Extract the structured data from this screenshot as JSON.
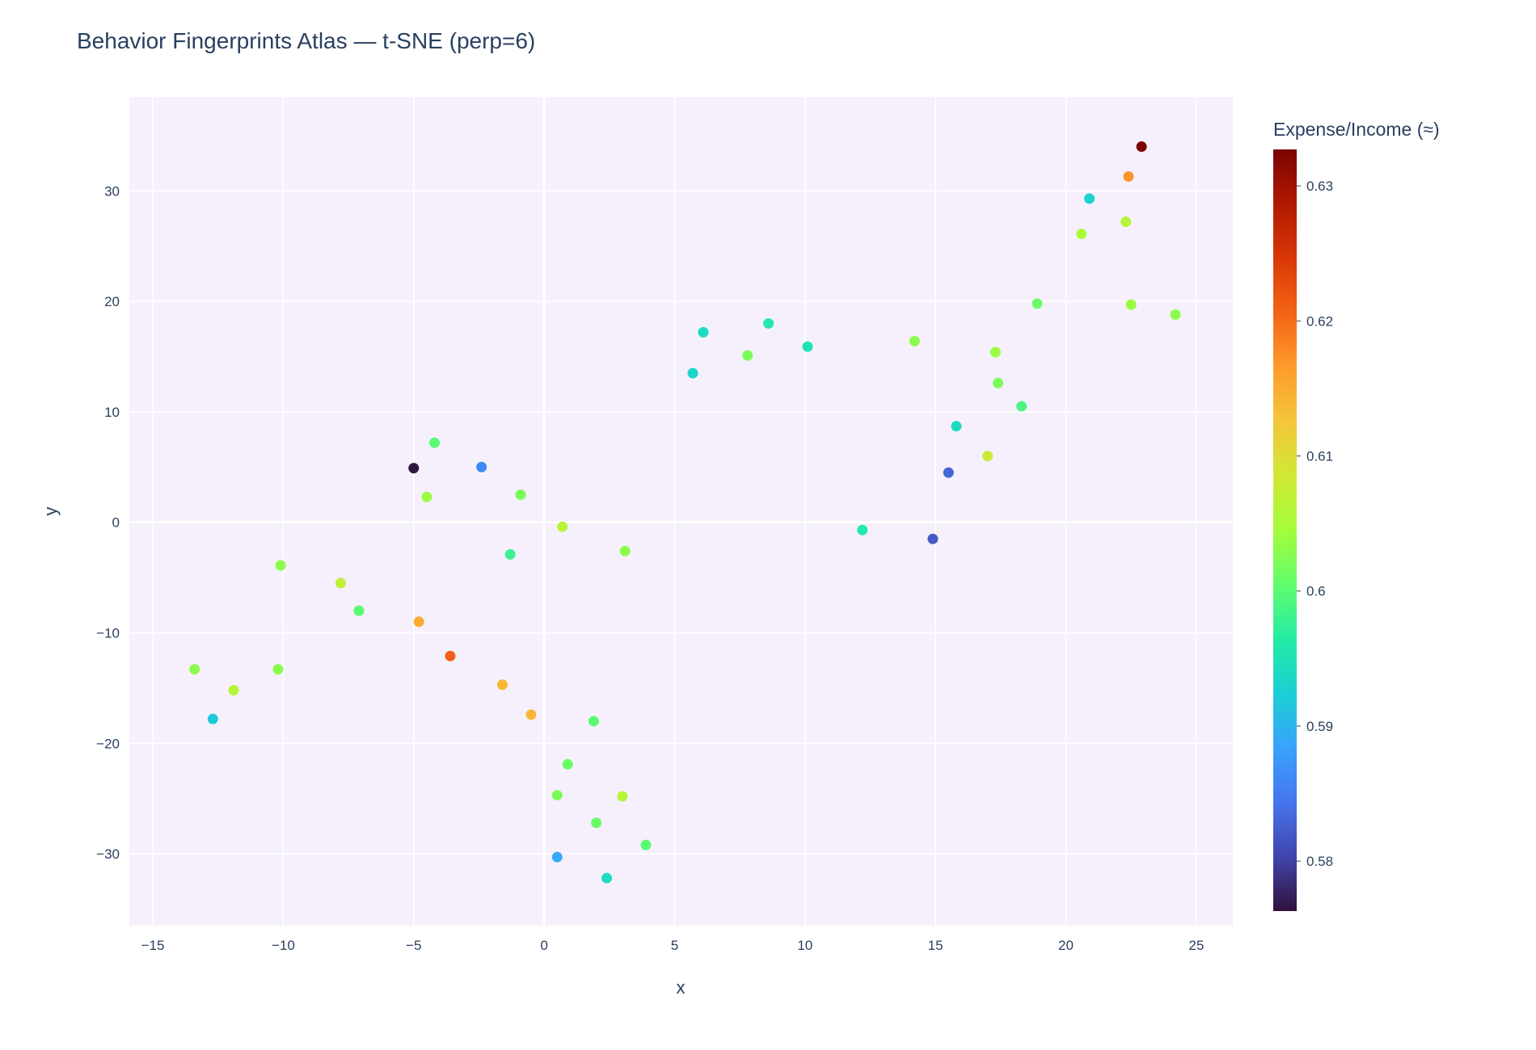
{
  "chart_data": {
    "type": "scatter",
    "title": "Behavior Fingerprints Atlas — t-SNE (perp=6)",
    "xlabel": "x",
    "ylabel": "y",
    "xlim": [
      -15.9,
      26.4
    ],
    "ylim": [
      -36.5,
      38.5
    ],
    "x_ticks": [
      -15,
      -10,
      -5,
      0,
      5,
      10,
      15,
      20,
      25
    ],
    "y_ticks": [
      -30,
      -20,
      -10,
      0,
      10,
      20,
      30
    ],
    "grid": true,
    "colorbar": {
      "title": "Expense/Income (≈)",
      "range": [
        0.5763,
        0.6327
      ],
      "ticks": [
        0.58,
        0.59,
        0.6,
        0.61,
        0.62,
        0.63
      ],
      "tick_labels": [
        "0.58",
        "0.59",
        "0.6",
        "0.61",
        "0.62",
        "0.63"
      ],
      "colorscale": "Turbo",
      "scale_colors": [
        "#30123b",
        "#4145ab",
        "#4675ed",
        "#39a2fc",
        "#1bcfd4",
        "#24eca6",
        "#61fc6c",
        "#a4fc3b",
        "#d1e834",
        "#f3c63a",
        "#fe9b2d",
        "#f36315",
        "#d93806",
        "#b11901",
        "#7a0402"
      ]
    },
    "colors": {
      "plot_background": "#f5f0fc",
      "grid": "#ffffff",
      "text": "#2a3f5f"
    },
    "points": [
      {
        "x": -13.4,
        "y": -13.3,
        "value": 0.603
      },
      {
        "x": -12.7,
        "y": -17.8,
        "value": 0.592
      },
      {
        "x": -11.9,
        "y": -15.2,
        "value": 0.606
      },
      {
        "x": -10.2,
        "y": -13.3,
        "value": 0.603
      },
      {
        "x": -10.1,
        "y": -3.9,
        "value": 0.603
      },
      {
        "x": -7.8,
        "y": -5.5,
        "value": 0.607
      },
      {
        "x": -7.1,
        "y": -8.0,
        "value": 0.6
      },
      {
        "x": -5.0,
        "y": 4.9,
        "value": 0.5765
      },
      {
        "x": -4.8,
        "y": -9.0,
        "value": 0.615
      },
      {
        "x": -4.5,
        "y": 2.3,
        "value": 0.604
      },
      {
        "x": -4.2,
        "y": 7.2,
        "value": 0.6
      },
      {
        "x": -3.6,
        "y": -12.1,
        "value": 0.621
      },
      {
        "x": -2.4,
        "y": 5.0,
        "value": 0.586
      },
      {
        "x": -1.6,
        "y": -14.7,
        "value": 0.614
      },
      {
        "x": -1.3,
        "y": -2.9,
        "value": 0.598
      },
      {
        "x": -0.9,
        "y": 2.5,
        "value": 0.602
      },
      {
        "x": -0.5,
        "y": -17.4,
        "value": 0.614
      },
      {
        "x": 0.5,
        "y": -30.3,
        "value": 0.589
      },
      {
        "x": 0.5,
        "y": -24.7,
        "value": 0.602
      },
      {
        "x": 0.7,
        "y": -0.4,
        "value": 0.606
      },
      {
        "x": 0.9,
        "y": -21.9,
        "value": 0.601
      },
      {
        "x": 1.9,
        "y": -18.0,
        "value": 0.6
      },
      {
        "x": 2.0,
        "y": -27.2,
        "value": 0.601
      },
      {
        "x": 2.4,
        "y": -32.2,
        "value": 0.594
      },
      {
        "x": 3.0,
        "y": -24.8,
        "value": 0.606
      },
      {
        "x": 3.1,
        "y": -2.6,
        "value": 0.603
      },
      {
        "x": 3.9,
        "y": -29.2,
        "value": 0.6
      },
      {
        "x": 5.7,
        "y": 13.5,
        "value": 0.593
      },
      {
        "x": 6.1,
        "y": 17.2,
        "value": 0.594
      },
      {
        "x": 7.8,
        "y": 15.1,
        "value": 0.602
      },
      {
        "x": 8.6,
        "y": 18.0,
        "value": 0.596
      },
      {
        "x": 10.1,
        "y": 15.9,
        "value": 0.595
      },
      {
        "x": 12.2,
        "y": -0.7,
        "value": 0.596
      },
      {
        "x": 14.2,
        "y": 16.4,
        "value": 0.603
      },
      {
        "x": 14.9,
        "y": -1.5,
        "value": 0.582
      },
      {
        "x": 15.5,
        "y": 4.5,
        "value": 0.583
      },
      {
        "x": 15.8,
        "y": 8.7,
        "value": 0.594
      },
      {
        "x": 17.0,
        "y": 6.0,
        "value": 0.608
      },
      {
        "x": 17.3,
        "y": 15.4,
        "value": 0.604
      },
      {
        "x": 17.4,
        "y": 12.6,
        "value": 0.602
      },
      {
        "x": 18.3,
        "y": 10.5,
        "value": 0.599
      },
      {
        "x": 18.9,
        "y": 19.8,
        "value": 0.601
      },
      {
        "x": 20.6,
        "y": 26.1,
        "value": 0.605
      },
      {
        "x": 20.9,
        "y": 29.3,
        "value": 0.593
      },
      {
        "x": 22.3,
        "y": 27.2,
        "value": 0.606
      },
      {
        "x": 22.4,
        "y": 31.3,
        "value": 0.617
      },
      {
        "x": 22.5,
        "y": 19.7,
        "value": 0.604
      },
      {
        "x": 22.9,
        "y": 34.0,
        "value": 0.6327
      },
      {
        "x": 24.2,
        "y": 18.8,
        "value": 0.603
      }
    ]
  }
}
